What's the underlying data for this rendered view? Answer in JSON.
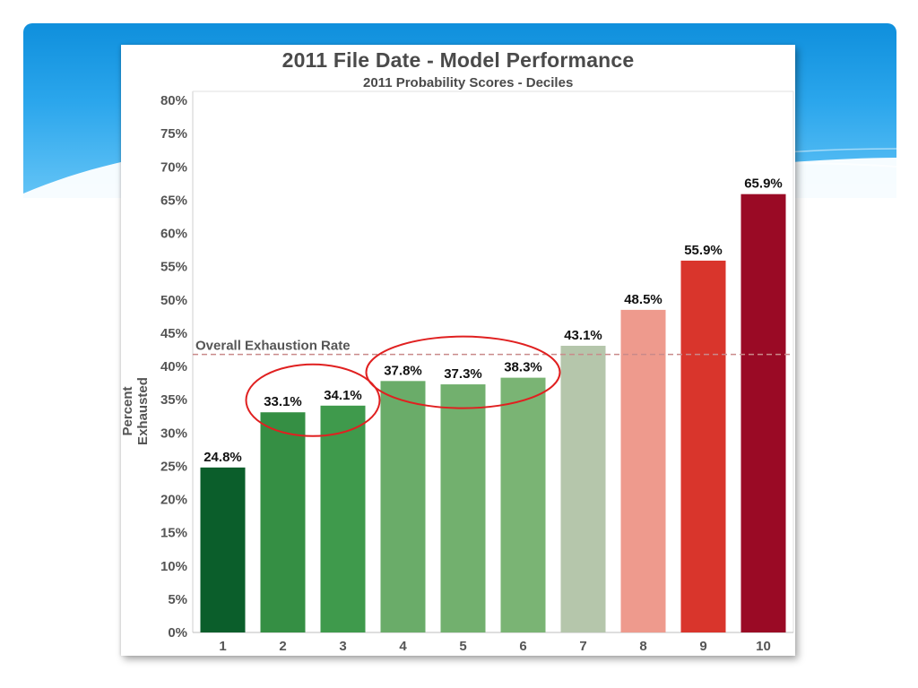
{
  "chart_data": {
    "type": "bar",
    "title": "2011 File Date - Model Performance",
    "subtitle": "2011 Probability Scores - Deciles",
    "xlabel": "",
    "ylabel": "Percent Exhausted",
    "categories": [
      "1",
      "2",
      "3",
      "4",
      "5",
      "6",
      "7",
      "8",
      "9",
      "10"
    ],
    "values": [
      24.8,
      33.1,
      34.1,
      37.8,
      37.3,
      38.3,
      43.1,
      48.5,
      55.9,
      65.9
    ],
    "value_labels": [
      "24.8%",
      "33.1%",
      "34.1%",
      "37.8%",
      "37.3%",
      "38.3%",
      "43.1%",
      "48.5%",
      "55.9%",
      "65.9%"
    ],
    "colors": [
      "#0b5e2b",
      "#358f44",
      "#3f9a4c",
      "#6aac69",
      "#72b06e",
      "#7ab474",
      "#b5c6ab",
      "#ee9a8d",
      "#d9352c",
      "#9a0a25"
    ],
    "ylim": [
      0,
      80
    ],
    "yticks": [
      0,
      5,
      10,
      15,
      20,
      25,
      30,
      35,
      40,
      45,
      50,
      55,
      60,
      65,
      70,
      75,
      80
    ],
    "ytick_labels": [
      "0%",
      "5%",
      "10%",
      "15%",
      "20%",
      "25%",
      "30%",
      "35%",
      "40%",
      "45%",
      "50%",
      "55%",
      "60%",
      "65%",
      "70%",
      "75%",
      "80%"
    ],
    "reference_line": {
      "label": "Overall Exhaustion Rate",
      "value": 41.8,
      "style": "dashed",
      "color": "#c98a8a"
    },
    "highlight_groups": [
      {
        "categories": [
          "2",
          "3"
        ],
        "color": "#e02020",
        "shape": "ellipse"
      },
      {
        "categories": [
          "4",
          "5",
          "6"
        ],
        "color": "#e02020",
        "shape": "ellipse"
      }
    ],
    "grid": false,
    "legend": "none"
  },
  "theme": {
    "header_gradient": [
      "#0f8fdc",
      "#64c4f6"
    ],
    "axis_text_color": "#555555"
  }
}
